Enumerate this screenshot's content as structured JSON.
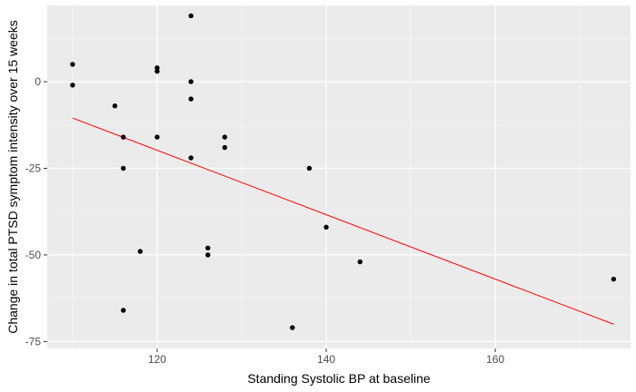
{
  "chart_data": {
    "type": "scatter",
    "xlabel": "Standing Systolic BP at baseline",
    "ylabel": "Change in total PTSD symptom intensity over 15 weeks",
    "xlim": [
      107,
      176
    ],
    "ylim": [
      -77,
      22
    ],
    "x_ticks": [
      120,
      140,
      160
    ],
    "y_ticks": [
      0,
      -25,
      -50,
      -75
    ],
    "x_tick_labels": [
      "120",
      "140",
      "160"
    ],
    "y_tick_labels": [
      "0",
      "-25",
      "-50",
      "-75"
    ],
    "grid": true,
    "background": "#EBEBEB",
    "point_color": "#000000",
    "trend_color": "#FF0000",
    "points": [
      {
        "x": 110,
        "y": 5
      },
      {
        "x": 110,
        "y": -1
      },
      {
        "x": 115,
        "y": -7
      },
      {
        "x": 116,
        "y": -16
      },
      {
        "x": 116,
        "y": -25
      },
      {
        "x": 116,
        "y": -66
      },
      {
        "x": 118,
        "y": -49
      },
      {
        "x": 120,
        "y": 4
      },
      {
        "x": 120,
        "y": 3
      },
      {
        "x": 120,
        "y": -16
      },
      {
        "x": 124,
        "y": 19
      },
      {
        "x": 124,
        "y": 0
      },
      {
        "x": 124,
        "y": -5
      },
      {
        "x": 124,
        "y": -22
      },
      {
        "x": 126,
        "y": -48
      },
      {
        "x": 126,
        "y": -50
      },
      {
        "x": 128,
        "y": -16
      },
      {
        "x": 128,
        "y": -19
      },
      {
        "x": 136,
        "y": -71
      },
      {
        "x": 138,
        "y": -25
      },
      {
        "x": 140,
        "y": -42
      },
      {
        "x": 144,
        "y": -52
      },
      {
        "x": 174,
        "y": -57
      }
    ],
    "trend_line": {
      "x": [
        110,
        174
      ],
      "y": [
        -10.5,
        -70
      ]
    }
  }
}
